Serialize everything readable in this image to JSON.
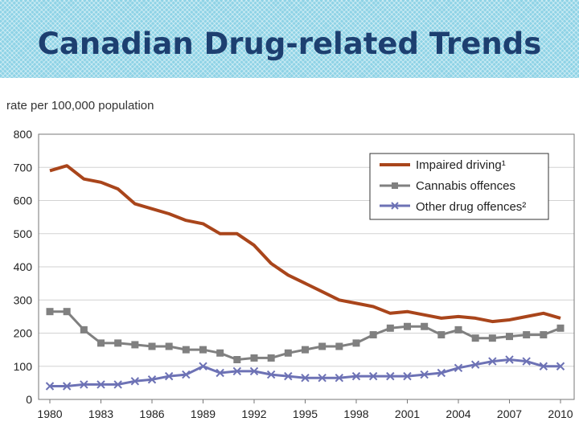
{
  "slide": {
    "title": "Canadian Drug-related Trends"
  },
  "chart_data": {
    "type": "line",
    "ylabel": "rate per 100,000 population",
    "xlabel": "",
    "ylim": [
      0,
      800
    ],
    "yticks": [
      0,
      100,
      200,
      300,
      400,
      500,
      600,
      700,
      800
    ],
    "xlim": [
      1980,
      2010
    ],
    "xticks": [
      1980,
      1983,
      1986,
      1989,
      1992,
      1995,
      1998,
      2001,
      2004,
      2007,
      2010
    ],
    "grid": true,
    "legend_position": "top-right",
    "x": [
      1980,
      1981,
      1982,
      1983,
      1984,
      1985,
      1986,
      1987,
      1988,
      1989,
      1990,
      1991,
      1992,
      1993,
      1994,
      1995,
      1996,
      1997,
      1998,
      1999,
      2000,
      2001,
      2002,
      2003,
      2004,
      2005,
      2006,
      2007,
      2008,
      2009,
      2010
    ],
    "series": [
      {
        "name": "Impaired driving¹",
        "color": "#a9451b",
        "marker": "none",
        "values": [
          690,
          705,
          665,
          655,
          635,
          590,
          575,
          560,
          540,
          530,
          500,
          500,
          465,
          410,
          375,
          350,
          325,
          300,
          290,
          280,
          260,
          265,
          255,
          245,
          250,
          245,
          235,
          240,
          250,
          260,
          245
        ]
      },
      {
        "name": "Cannabis offences",
        "color": "#808080",
        "marker": "square",
        "values": [
          265,
          265,
          210,
          170,
          170,
          165,
          160,
          160,
          150,
          150,
          140,
          120,
          125,
          125,
          140,
          150,
          160,
          160,
          170,
          195,
          215,
          220,
          220,
          195,
          210,
          185,
          185,
          190,
          195,
          195,
          215
        ]
      },
      {
        "name": "Other drug offences²",
        "color": "#6d72b5",
        "marker": "x",
        "values": [
          40,
          40,
          45,
          45,
          45,
          55,
          60,
          70,
          75,
          100,
          80,
          85,
          85,
          75,
          70,
          65,
          65,
          65,
          70,
          70,
          70,
          70,
          75,
          80,
          95,
          105,
          115,
          120,
          115,
          100,
          100
        ]
      }
    ]
  }
}
